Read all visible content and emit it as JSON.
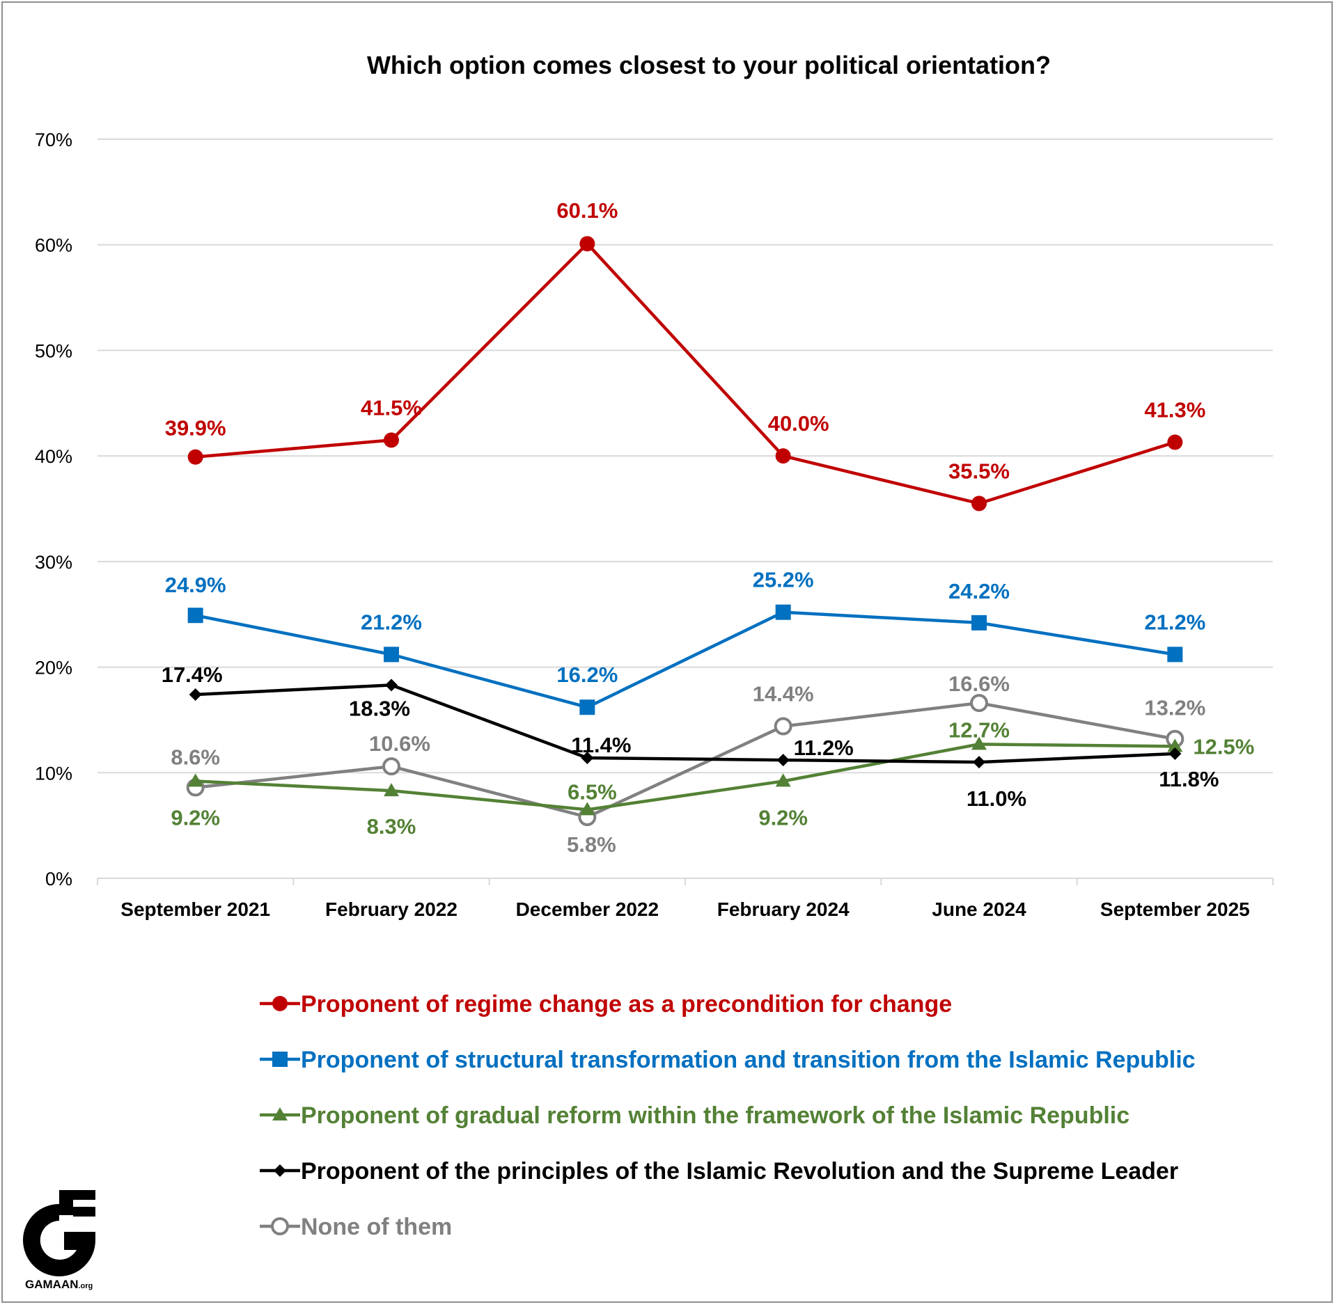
{
  "chart_data": {
    "type": "line",
    "title": "Which option comes closest to your political orientation?",
    "categories": [
      "September 2021",
      "February 2022",
      "December 2022",
      "February 2024",
      "June 2024",
      "September 2025"
    ],
    "ylim": [
      0,
      70
    ],
    "yticks": [
      0,
      10,
      20,
      30,
      40,
      50,
      60,
      70
    ],
    "ytick_labels": [
      "0%",
      "10%",
      "20%",
      "30%",
      "40%",
      "50%",
      "60%",
      "70%"
    ],
    "grid": true,
    "legend_position": "bottom",
    "series": [
      {
        "name": "Proponent of regime change as a precondition for change",
        "color": "#c00000",
        "marker": "circle",
        "values": [
          39.9,
          41.5,
          60.1,
          40.0,
          35.5,
          41.3
        ],
        "labels": [
          "39.9%",
          "41.5%",
          "60.1%",
          "40.0%",
          "35.5%",
          "41.3%"
        ]
      },
      {
        "name": "Proponent of structural transformation and transition from the Islamic Republic",
        "color": "#0070c0",
        "marker": "square",
        "values": [
          24.9,
          21.2,
          16.2,
          25.2,
          24.2,
          21.2
        ],
        "labels": [
          "24.9%",
          "21.2%",
          "16.2%",
          "25.2%",
          "24.2%",
          "21.2%"
        ]
      },
      {
        "name": "Proponent of gradual reform within the framework of the Islamic Republic",
        "color": "#538135",
        "marker": "triangle",
        "values": [
          9.2,
          8.3,
          6.5,
          9.2,
          12.7,
          12.5
        ],
        "labels": [
          "9.2%",
          "8.3%",
          "6.5%",
          "9.2%",
          "12.7%",
          "12.5%"
        ]
      },
      {
        "name": "Proponent of the principles of the Islamic Revolution and the Supreme Leader",
        "color": "#000000",
        "marker": "diamond",
        "values": [
          17.4,
          18.3,
          11.4,
          11.2,
          11.0,
          11.8
        ],
        "labels": [
          "17.4%",
          "18.3%",
          "11.4%",
          "11.2%",
          "11.0%",
          "11.8%"
        ]
      },
      {
        "name": "None of them",
        "color": "#808080",
        "marker": "hollow-circle",
        "values": [
          8.6,
          10.6,
          5.8,
          14.4,
          16.6,
          13.2
        ],
        "labels": [
          "8.6%",
          "10.6%",
          "5.8%",
          "14.4%",
          "16.6%",
          "13.2%"
        ]
      }
    ]
  },
  "logo": {
    "text": "GAMAAN",
    "suffix": ".org"
  }
}
